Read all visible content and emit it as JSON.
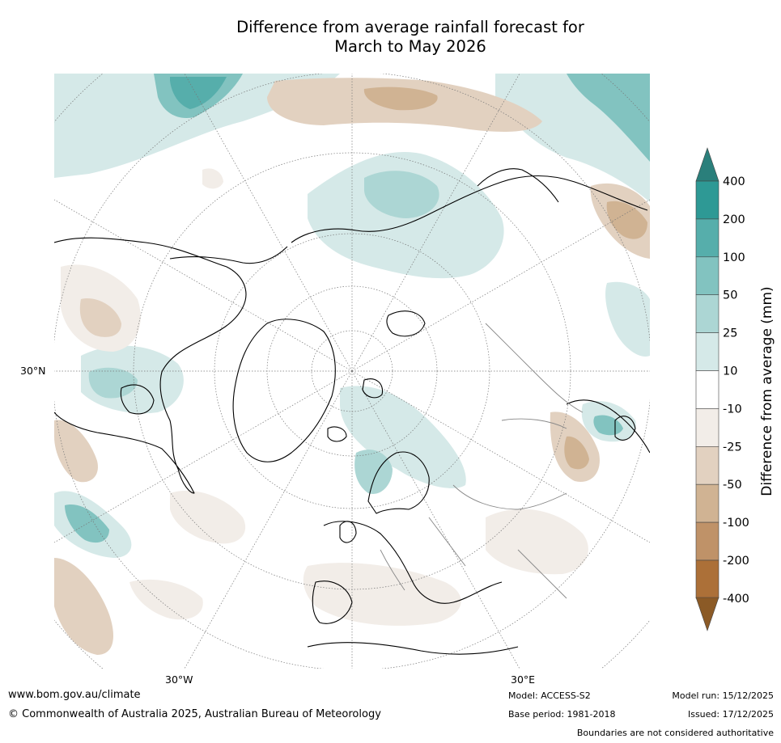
{
  "title": {
    "line1": "Difference from average rainfall forecast for",
    "line2": "March to May 2026"
  },
  "map": {
    "projection_labels": {
      "lat_30n": "30°N",
      "lon_30w": "30°W",
      "lon_30e": "30°E"
    },
    "colors": {
      "wet_light": "#d5e9e8",
      "wet_25": "#acd6d4",
      "wet_50": "#82c3c0",
      "wet_100": "#56aeab",
      "wet_200": "#2e9995",
      "dry_light": "#f2ede8",
      "dry_25": "#e2d1c0",
      "dry_50": "#d0b393",
      "dry_100": "#bf9268"
    }
  },
  "colorbar": {
    "label": "Difference from average (mm)",
    "ticks": [
      "400",
      "200",
      "100",
      "50",
      "25",
      "10",
      "-10",
      "-25",
      "-50",
      "-100",
      "-200",
      "-400"
    ],
    "bands": [
      "#2e9995",
      "#56aeab",
      "#82c3c0",
      "#acd6d4",
      "#d5e9e8",
      "#ffffff",
      "#f2ede8",
      "#e2d1c0",
      "#d0b393",
      "#bf9268",
      "#ac7038"
    ],
    "extend_top_color": "#2a7f7b",
    "extend_bottom_color": "#8b5a26"
  },
  "footer": {
    "website": "www.bom.gov.au/climate",
    "copyright": "© Commonwealth of Australia 2025, Australian Bureau of Meteorology",
    "model": "Model: ACCESS-S2",
    "base_period": "Base period: 1981-2018",
    "model_run": "Model run: 15/12/2025",
    "issued": "Issued: 17/12/2025",
    "disclaimer": "Boundaries are not considered authoritative"
  }
}
